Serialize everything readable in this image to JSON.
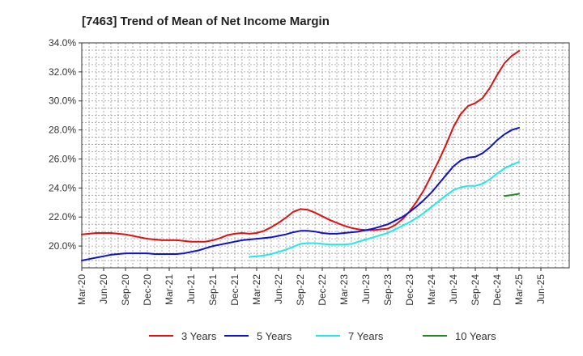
{
  "chart_data": {
    "type": "line",
    "title": "[7463]  Trend of Mean of Net Income Margin",
    "xlabel": "",
    "ylabel": "",
    "ylim": [
      18.5,
      34.0
    ],
    "y_ticks": [
      20.0,
      22.0,
      24.0,
      26.0,
      28.0,
      30.0,
      32.0,
      34.0
    ],
    "y_tick_labels": [
      "20.0%",
      "22.0%",
      "24.0%",
      "26.0%",
      "28.0%",
      "30.0%",
      "32.0%",
      "34.0%"
    ],
    "x_tick_labels": [
      "Mar-20",
      "Jun-20",
      "Sep-20",
      "Dec-20",
      "Mar-21",
      "Jun-21",
      "Sep-21",
      "Dec-21",
      "Mar-22",
      "Jun-22",
      "Sep-22",
      "Dec-22",
      "Mar-23",
      "Jun-23",
      "Sep-23",
      "Dec-23",
      "Mar-24",
      "Jun-24",
      "Sep-24",
      "Dec-24",
      "Mar-25",
      "Jun-25"
    ],
    "grid": true,
    "legend_position": "bottom",
    "series": [
      {
        "name": "3 Years",
        "color": "#dd1111",
        "points": [
          [
            "Mar-20",
            20.8
          ],
          [
            "Apr-20",
            20.85
          ],
          [
            "May-20",
            20.9
          ],
          [
            "Jun-20",
            20.9
          ],
          [
            "Jul-20",
            20.9
          ],
          [
            "Aug-20",
            20.85
          ],
          [
            "Sep-20",
            20.8
          ],
          [
            "Oct-20",
            20.7
          ],
          [
            "Nov-20",
            20.6
          ],
          [
            "Dec-20",
            20.5
          ],
          [
            "Jan-21",
            20.45
          ],
          [
            "Feb-21",
            20.4
          ],
          [
            "Mar-21",
            20.4
          ],
          [
            "Apr-21",
            20.4
          ],
          [
            "May-21",
            20.35
          ],
          [
            "Jun-21",
            20.3
          ],
          [
            "Jul-21",
            20.3
          ],
          [
            "Aug-21",
            20.3
          ],
          [
            "Sep-21",
            20.4
          ],
          [
            "Oct-21",
            20.55
          ],
          [
            "Nov-21",
            20.75
          ],
          [
            "Dec-21",
            20.85
          ],
          [
            "Jan-22",
            20.9
          ],
          [
            "Feb-22",
            20.85
          ],
          [
            "Mar-22",
            20.9
          ],
          [
            "Apr-22",
            21.05
          ],
          [
            "May-22",
            21.3
          ],
          [
            "Jun-22",
            21.6
          ],
          [
            "Jul-22",
            21.95
          ],
          [
            "Aug-22",
            22.35
          ],
          [
            "Sep-22",
            22.55
          ],
          [
            "Oct-22",
            22.5
          ],
          [
            "Nov-22",
            22.3
          ],
          [
            "Dec-22",
            22.05
          ],
          [
            "Jan-23",
            21.8
          ],
          [
            "Feb-23",
            21.6
          ],
          [
            "Mar-23",
            21.4
          ],
          [
            "Apr-23",
            21.25
          ],
          [
            "May-23",
            21.15
          ],
          [
            "Jun-23",
            21.1
          ],
          [
            "Jul-23",
            21.1
          ],
          [
            "Aug-23",
            21.15
          ],
          [
            "Sep-23",
            21.2
          ],
          [
            "Oct-23",
            21.45
          ],
          [
            "Nov-23",
            21.85
          ],
          [
            "Dec-23",
            22.4
          ],
          [
            "Jan-24",
            23.1
          ],
          [
            "Feb-24",
            23.9
          ],
          [
            "Mar-24",
            24.9
          ],
          [
            "Apr-24",
            25.9
          ],
          [
            "May-24",
            27.0
          ],
          [
            "Jun-24",
            28.2
          ],
          [
            "Jul-24",
            29.1
          ],
          [
            "Aug-24",
            29.65
          ],
          [
            "Sep-24",
            29.85
          ],
          [
            "Oct-24",
            30.2
          ],
          [
            "Nov-24",
            30.9
          ],
          [
            "Dec-24",
            31.8
          ],
          [
            "Jan-25",
            32.6
          ],
          [
            "Feb-25",
            33.1
          ],
          [
            "Mar-25",
            33.45
          ]
        ]
      },
      {
        "name": "5 Years",
        "color": "#1111cc",
        "points": [
          [
            "Mar-20",
            19.0
          ],
          [
            "Apr-20",
            19.1
          ],
          [
            "May-20",
            19.2
          ],
          [
            "Jun-20",
            19.3
          ],
          [
            "Jul-20",
            19.4
          ],
          [
            "Aug-20",
            19.45
          ],
          [
            "Sep-20",
            19.5
          ],
          [
            "Oct-20",
            19.5
          ],
          [
            "Nov-20",
            19.5
          ],
          [
            "Dec-20",
            19.5
          ],
          [
            "Jan-21",
            19.45
          ],
          [
            "Feb-21",
            19.45
          ],
          [
            "Mar-21",
            19.45
          ],
          [
            "Apr-21",
            19.45
          ],
          [
            "May-21",
            19.5
          ],
          [
            "Jun-21",
            19.6
          ],
          [
            "Jul-21",
            19.7
          ],
          [
            "Aug-21",
            19.85
          ],
          [
            "Sep-21",
            20.0
          ],
          [
            "Oct-21",
            20.1
          ],
          [
            "Nov-21",
            20.2
          ],
          [
            "Dec-21",
            20.3
          ],
          [
            "Jan-22",
            20.4
          ],
          [
            "Feb-22",
            20.45
          ],
          [
            "Mar-22",
            20.5
          ],
          [
            "Apr-22",
            20.55
          ],
          [
            "May-22",
            20.6
          ],
          [
            "Jun-22",
            20.7
          ],
          [
            "Jul-22",
            20.8
          ],
          [
            "Aug-22",
            20.95
          ],
          [
            "Sep-22",
            21.05
          ],
          [
            "Oct-22",
            21.05
          ],
          [
            "Nov-22",
            21.0
          ],
          [
            "Dec-22",
            20.9
          ],
          [
            "Jan-23",
            20.85
          ],
          [
            "Feb-23",
            20.85
          ],
          [
            "Mar-23",
            20.9
          ],
          [
            "Apr-23",
            20.95
          ],
          [
            "May-23",
            21.0
          ],
          [
            "Jun-23",
            21.1
          ],
          [
            "Jul-23",
            21.2
          ],
          [
            "Aug-23",
            21.35
          ],
          [
            "Sep-23",
            21.5
          ],
          [
            "Oct-23",
            21.75
          ],
          [
            "Nov-23",
            22.0
          ],
          [
            "Dec-23",
            22.35
          ],
          [
            "Jan-24",
            22.75
          ],
          [
            "Feb-24",
            23.2
          ],
          [
            "Mar-24",
            23.7
          ],
          [
            "Apr-24",
            24.3
          ],
          [
            "May-24",
            24.9
          ],
          [
            "Jun-24",
            25.5
          ],
          [
            "Jul-24",
            25.9
          ],
          [
            "Aug-24",
            26.1
          ],
          [
            "Sep-24",
            26.15
          ],
          [
            "Oct-24",
            26.4
          ],
          [
            "Nov-24",
            26.8
          ],
          [
            "Dec-24",
            27.3
          ],
          [
            "Jan-25",
            27.7
          ],
          [
            "Feb-25",
            28.0
          ],
          [
            "Mar-25",
            28.15
          ]
        ]
      },
      {
        "name": "7 Years",
        "color": "#22e8e8",
        "points": [
          [
            "Feb-22",
            19.25
          ],
          [
            "Mar-22",
            19.3
          ],
          [
            "Apr-22",
            19.35
          ],
          [
            "May-22",
            19.45
          ],
          [
            "Jun-22",
            19.6
          ],
          [
            "Jul-22",
            19.75
          ],
          [
            "Aug-22",
            19.95
          ],
          [
            "Sep-22",
            20.15
          ],
          [
            "Oct-22",
            20.2
          ],
          [
            "Nov-22",
            20.2
          ],
          [
            "Dec-22",
            20.15
          ],
          [
            "Jan-23",
            20.1
          ],
          [
            "Feb-23",
            20.1
          ],
          [
            "Mar-23",
            20.1
          ],
          [
            "Apr-23",
            20.15
          ],
          [
            "May-23",
            20.3
          ],
          [
            "Jun-23",
            20.45
          ],
          [
            "Jul-23",
            20.6
          ],
          [
            "Aug-23",
            20.75
          ],
          [
            "Sep-23",
            20.9
          ],
          [
            "Oct-23",
            21.15
          ],
          [
            "Nov-23",
            21.4
          ],
          [
            "Dec-23",
            21.65
          ],
          [
            "Jan-24",
            21.95
          ],
          [
            "Feb-24",
            22.3
          ],
          [
            "Mar-24",
            22.7
          ],
          [
            "Apr-24",
            23.1
          ],
          [
            "May-24",
            23.5
          ],
          [
            "Jun-24",
            23.85
          ],
          [
            "Jul-24",
            24.05
          ],
          [
            "Aug-24",
            24.15
          ],
          [
            "Sep-24",
            24.15
          ],
          [
            "Oct-24",
            24.3
          ],
          [
            "Nov-24",
            24.6
          ],
          [
            "Dec-24",
            25.0
          ],
          [
            "Jan-25",
            25.35
          ],
          [
            "Feb-25",
            25.6
          ],
          [
            "Mar-25",
            25.8
          ]
        ]
      },
      {
        "name": "10 Years",
        "color": "#228822",
        "points": [
          [
            "Jan-25",
            23.45
          ],
          [
            "Feb-25",
            23.52
          ],
          [
            "Mar-25",
            23.6
          ]
        ]
      }
    ]
  }
}
